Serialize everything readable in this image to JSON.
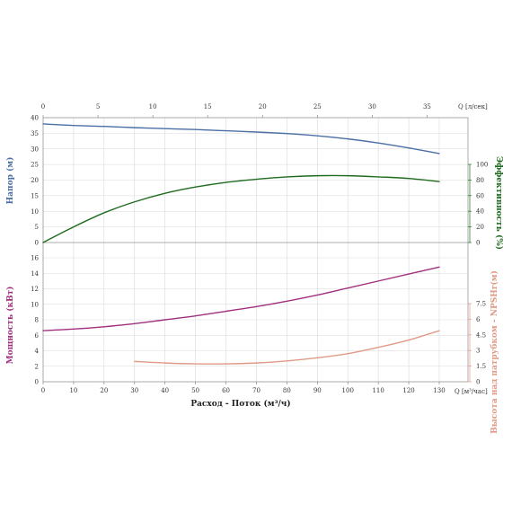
{
  "chart_data": {
    "type": "line",
    "grid": true,
    "colors": {
      "head": "#4a6fa5",
      "efficiency": "#1f6b1f",
      "power": "#a0307e",
      "npsh": "#e09a86",
      "tick_text": "#333333"
    },
    "x_bottom": {
      "label": "Расход - Поток (м³/ч)",
      "unit": "Q [м³/час]",
      "range": [
        0,
        140
      ],
      "ticks": [
        0,
        10,
        20,
        30,
        40,
        50,
        60,
        70,
        80,
        90,
        100,
        110,
        120,
        130
      ]
    },
    "x_top": {
      "unit": "Q [л/сек]",
      "range": [
        0,
        38.89
      ],
      "ticks": [
        0,
        5,
        10,
        15,
        20,
        25,
        30,
        35
      ]
    },
    "panels": {
      "upper": {
        "left_axis": {
          "label": "Напор (м)",
          "range": [
            0,
            40
          ],
          "ticks": [
            0,
            5,
            10,
            15,
            20,
            25,
            30,
            35,
            40
          ]
        },
        "right_axis": {
          "label": "Эффективность (%)",
          "range": [
            0,
            100
          ],
          "ticks": [
            0,
            20,
            40,
            60,
            80,
            100
          ]
        }
      },
      "lower": {
        "left_axis": {
          "label": "Мощность (кВт)",
          "range": [
            0,
            16
          ],
          "ticks": [
            0,
            2,
            4,
            6,
            8,
            10,
            12,
            14,
            16
          ]
        },
        "right_axis": {
          "label": "Высота над патрубком - NPSHr(м)",
          "range": [
            0,
            7.5
          ],
          "ticks": [
            0,
            1.5,
            3,
            4.5,
            6,
            7.5
          ]
        }
      }
    },
    "series": [
      {
        "key": "head",
        "panel": "upper",
        "axis": "left",
        "x": [
          0,
          10,
          20,
          30,
          40,
          50,
          60,
          70,
          80,
          90,
          100,
          110,
          120,
          130
        ],
        "y": [
          38.0,
          37.5,
          37.2,
          36.8,
          36.5,
          36.2,
          35.8,
          35.4,
          34.9,
          34.2,
          33.2,
          31.9,
          30.3,
          28.5
        ]
      },
      {
        "key": "efficiency",
        "panel": "upper",
        "axis": "right",
        "x": [
          0,
          10,
          20,
          30,
          40,
          50,
          60,
          70,
          80,
          90,
          100,
          110,
          120,
          130
        ],
        "y": [
          0,
          20,
          38,
          52,
          63,
          71,
          77,
          81,
          84,
          85.5,
          85.5,
          84,
          82,
          78
        ]
      },
      {
        "key": "power",
        "panel": "lower",
        "axis": "left",
        "x": [
          0,
          10,
          20,
          30,
          40,
          50,
          60,
          70,
          80,
          90,
          100,
          110,
          120,
          130
        ],
        "y": [
          6.6,
          6.8,
          7.1,
          7.5,
          8.0,
          8.5,
          9.1,
          9.7,
          10.4,
          11.2,
          12.1,
          13.0,
          13.9,
          14.8
        ]
      },
      {
        "key": "npsh",
        "panel": "lower",
        "axis": "right",
        "x": [
          30,
          40,
          50,
          60,
          70,
          80,
          90,
          100,
          110,
          120,
          130
        ],
        "y": [
          1.95,
          1.8,
          1.72,
          1.72,
          1.8,
          2.0,
          2.3,
          2.7,
          3.3,
          4.0,
          4.9
        ]
      }
    ]
  }
}
